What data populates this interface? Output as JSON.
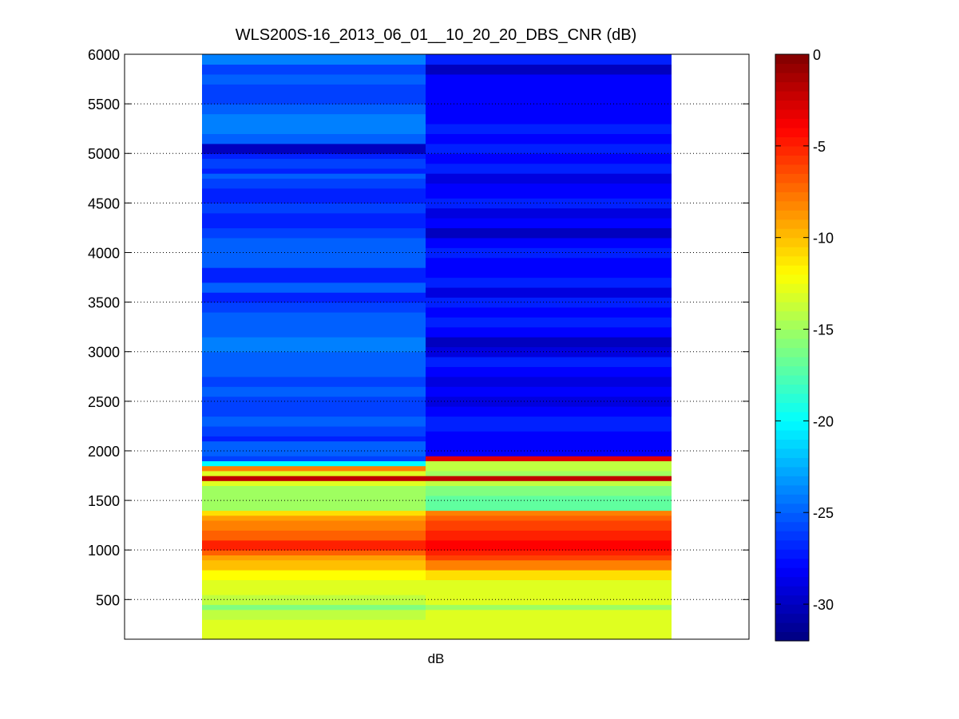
{
  "chart_data": {
    "type": "heatmap",
    "title": "WLS200S-16_2013_06_01__10_20_20_DBS_CNR (dB)",
    "xlabel": "dB",
    "ylabel": "",
    "ylim": [
      100,
      6000
    ],
    "yticks": [
      500,
      1000,
      1500,
      2000,
      2500,
      3000,
      3500,
      4000,
      4500,
      5000,
      5500,
      6000
    ],
    "y_gridlines": "dotted",
    "colormap": "jet",
    "clim": [
      -32,
      0
    ],
    "colorbar_ticks": [
      0,
      -5,
      -10,
      -15,
      -20,
      -25,
      -30
    ],
    "columns": [
      {
        "segments": [
          [
            100,
            200,
            -13
          ],
          [
            200,
            300,
            -13
          ],
          [
            300,
            400,
            -14
          ],
          [
            400,
            450,
            -16
          ],
          [
            450,
            550,
            -14
          ],
          [
            550,
            700,
            -13
          ],
          [
            700,
            800,
            -12
          ],
          [
            800,
            900,
            -10
          ],
          [
            900,
            950,
            -9
          ],
          [
            950,
            1000,
            -7
          ],
          [
            1000,
            1100,
            -5
          ],
          [
            1100,
            1200,
            -7
          ],
          [
            1200,
            1300,
            -8
          ],
          [
            1300,
            1350,
            -9
          ],
          [
            1350,
            1400,
            -11
          ],
          [
            1400,
            1650,
            -15
          ],
          [
            1650,
            1700,
            -13
          ],
          [
            1700,
            1750,
            -2
          ],
          [
            1750,
            1800,
            -13
          ],
          [
            1800,
            1850,
            -8
          ],
          [
            1850,
            1900,
            -20
          ],
          [
            1900,
            1950,
            -26
          ],
          [
            1950,
            2100,
            -25
          ],
          [
            2100,
            2150,
            -27
          ],
          [
            2150,
            2250,
            -26
          ],
          [
            2250,
            2350,
            -25
          ],
          [
            2350,
            2450,
            -26
          ],
          [
            2450,
            2550,
            -26
          ],
          [
            2550,
            2650,
            -25
          ],
          [
            2650,
            2750,
            -26
          ],
          [
            2750,
            2850,
            -25
          ],
          [
            2850,
            3000,
            -25
          ],
          [
            3000,
            3150,
            -24
          ],
          [
            3150,
            3250,
            -25
          ],
          [
            3250,
            3400,
            -25
          ],
          [
            3400,
            3500,
            -26
          ],
          [
            3500,
            3600,
            -27
          ],
          [
            3600,
            3700,
            -25
          ],
          [
            3700,
            3850,
            -27
          ],
          [
            3850,
            4000,
            -25
          ],
          [
            4000,
            4150,
            -25
          ],
          [
            4150,
            4250,
            -26
          ],
          [
            4250,
            4400,
            -27
          ],
          [
            4400,
            4500,
            -26
          ],
          [
            4500,
            4650,
            -27
          ],
          [
            4650,
            4750,
            -26
          ],
          [
            4750,
            4800,
            -25
          ],
          [
            4800,
            4850,
            -27
          ],
          [
            4850,
            4950,
            -26
          ],
          [
            4950,
            5000,
            -27
          ],
          [
            5000,
            5100,
            -30
          ],
          [
            5100,
            5200,
            -25
          ],
          [
            5200,
            5400,
            -24
          ],
          [
            5400,
            5500,
            -25
          ],
          [
            5500,
            5600,
            -26
          ],
          [
            5600,
            5700,
            -26
          ],
          [
            5700,
            5800,
            -25
          ],
          [
            5800,
            5900,
            -26
          ],
          [
            5900,
            6000,
            -24
          ]
        ]
      },
      {
        "segments": [
          [
            100,
            200,
            -13
          ],
          [
            200,
            300,
            -13
          ],
          [
            300,
            400,
            -13
          ],
          [
            400,
            450,
            -15
          ],
          [
            450,
            550,
            -13
          ],
          [
            550,
            700,
            -13
          ],
          [
            700,
            800,
            -11
          ],
          [
            800,
            900,
            -8
          ],
          [
            900,
            950,
            -6
          ],
          [
            950,
            1000,
            -5
          ],
          [
            1000,
            1100,
            -4
          ],
          [
            1100,
            1200,
            -5
          ],
          [
            1200,
            1300,
            -6
          ],
          [
            1300,
            1350,
            -7
          ],
          [
            1350,
            1400,
            -8
          ],
          [
            1400,
            1550,
            -17
          ],
          [
            1550,
            1650,
            -16
          ],
          [
            1650,
            1700,
            -14
          ],
          [
            1700,
            1750,
            -2
          ],
          [
            1750,
            1800,
            -15
          ],
          [
            1800,
            1850,
            -14
          ],
          [
            1850,
            1900,
            -14
          ],
          [
            1900,
            1950,
            -3
          ],
          [
            1950,
            2050,
            -28
          ],
          [
            2050,
            2200,
            -28
          ],
          [
            2200,
            2350,
            -27
          ],
          [
            2350,
            2450,
            -28
          ],
          [
            2450,
            2550,
            -29
          ],
          [
            2550,
            2650,
            -28
          ],
          [
            2650,
            2750,
            -29
          ],
          [
            2750,
            2850,
            -28
          ],
          [
            2850,
            2950,
            -27
          ],
          [
            2950,
            3050,
            -29
          ],
          [
            3050,
            3150,
            -30
          ],
          [
            3150,
            3250,
            -28
          ],
          [
            3250,
            3350,
            -27
          ],
          [
            3350,
            3450,
            -28
          ],
          [
            3450,
            3550,
            -27
          ],
          [
            3550,
            3650,
            -29
          ],
          [
            3650,
            3750,
            -27
          ],
          [
            3750,
            3850,
            -28
          ],
          [
            3850,
            3950,
            -28
          ],
          [
            3950,
            4050,
            -27
          ],
          [
            4050,
            4150,
            -28
          ],
          [
            4150,
            4250,
            -30
          ],
          [
            4250,
            4350,
            -28
          ],
          [
            4350,
            4450,
            -29
          ],
          [
            4450,
            4550,
            -27
          ],
          [
            4550,
            4700,
            -28
          ],
          [
            4700,
            4800,
            -29
          ],
          [
            4800,
            4900,
            -27
          ],
          [
            4900,
            5000,
            -28
          ],
          [
            5000,
            5100,
            -27
          ],
          [
            5100,
            5200,
            -28
          ],
          [
            5200,
            5300,
            -27
          ],
          [
            5300,
            5400,
            -28
          ],
          [
            5400,
            5500,
            -28
          ],
          [
            5500,
            5600,
            -28
          ],
          [
            5600,
            5700,
            -28
          ],
          [
            5700,
            5800,
            -28
          ],
          [
            5800,
            5900,
            -30
          ],
          [
            5900,
            6000,
            -27
          ]
        ]
      }
    ]
  }
}
